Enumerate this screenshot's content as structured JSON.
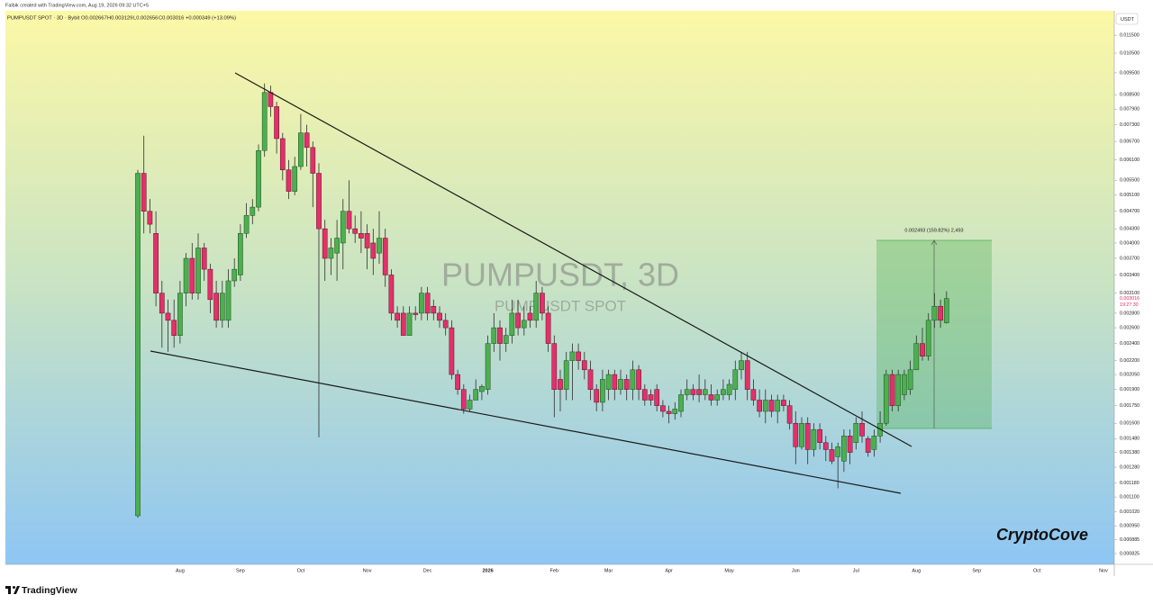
{
  "header": {
    "credit": "Falbik created with TradingView.com, Aug 19, 2026 09:32 UTC+5",
    "symbol": "PUMPUSDT SPOT · 3D · Bybit",
    "open": "O0.002667",
    "high": "H0.003129",
    "low": "L0.002656",
    "close": "C0.003016",
    "change": "+0.000349 (+13.09%)",
    "currency": "USDT"
  },
  "watermark": {
    "title": "PUMPUSDT, 3D",
    "subtitle": "PUMPUSDT SPOT"
  },
  "measure_label": "0.002493 (159.82%) 2,493",
  "countdown": "19:27:30",
  "signature": "CryptoCove",
  "brand": "TradingView",
  "chart_data": {
    "type": "candlestick",
    "log_scale": true,
    "up_color": "#4caf50",
    "down_color": "#e3306a",
    "categories": [
      null,
      null,
      null,
      null,
      null,
      null,
      null,
      "Aug",
      null,
      null,
      null,
      null,
      null,
      null,
      null,
      null,
      null,
      "Sep",
      null,
      null,
      null,
      null,
      null,
      null,
      null,
      null,
      null,
      "Oct",
      null,
      null,
      null,
      null,
      null,
      null,
      null,
      null,
      null,
      null,
      "Nov",
      null,
      null,
      null,
      null,
      null,
      null,
      null,
      null,
      null,
      "Dec",
      null,
      null,
      null,
      null,
      null,
      null,
      null,
      null,
      null,
      "2026",
      null,
      null,
      null,
      null,
      null,
      null,
      null,
      null,
      null,
      null,
      "Feb",
      null,
      null,
      null,
      null,
      null,
      null,
      null,
      null,
      "Mar",
      null,
      null,
      null,
      null,
      null,
      null,
      null,
      null,
      null,
      "Apr",
      null,
      null,
      null,
      null,
      null,
      null,
      null,
      null,
      null,
      "May",
      null,
      null,
      null,
      null,
      null,
      null,
      null,
      null,
      null,
      null,
      "Jun",
      null,
      null,
      null,
      null,
      null,
      null,
      null,
      null,
      null,
      "Jul",
      null,
      null,
      null,
      null,
      null,
      null,
      null,
      null,
      null,
      "Aug",
      null,
      null,
      null,
      null,
      null,
      null,
      null,
      null,
      null,
      "Sep",
      null,
      null,
      null,
      null,
      null,
      null,
      null,
      null,
      null,
      "Oct",
      null,
      null,
      null,
      null,
      null,
      null,
      null,
      null,
      null,
      null,
      "Nov",
      null
    ],
    "open": [
      0.001,
      0.0057,
      0.0047,
      0.0042,
      0.0031,
      0.0028,
      0.0027,
      0.0025,
      0.0031,
      0.0037,
      0.0031,
      0.0039,
      0.0035,
      0.0031,
      0.0027,
      0.0027,
      0.0033,
      0.0034,
      0.0042,
      0.0046,
      0.0048,
      0.0064,
      0.0086,
      0.008,
      0.0068,
      0.0058,
      0.0052,
      0.0059,
      0.007,
      0.0065,
      0.0057,
      0.0043,
      0.0037,
      0.0038,
      0.004,
      0.0047,
      0.0043,
      0.0042,
      0.0042,
      0.004,
      0.0038,
      0.0041,
      0.0034,
      0.0028,
      0.0028,
      0.0025,
      0.0028,
      0.0028,
      0.0031,
      0.0029,
      0.0028,
      0.0027,
      0.0026,
      0.00205,
      0.0019,
      0.00172,
      0.0018,
      0.00188,
      0.0019,
      0.0024,
      0.0026,
      0.0024,
      0.0025,
      0.0028,
      0.0026,
      0.0028,
      0.0027,
      0.0031,
      0.0028,
      0.0024,
      0.002,
      0.0019,
      0.0022,
      0.0023,
      0.0022,
      0.0021,
      0.0019,
      0.00178,
      0.0019,
      0.00205,
      0.0019,
      0.002,
      0.0019,
      0.0021,
      0.0019,
      0.00185,
      0.0019,
      0.00175,
      0.0017,
      0.00168,
      0.0017,
      0.00185,
      0.0019,
      0.0019,
      0.00185,
      0.00185,
      0.0018,
      0.00185,
      0.00185,
      0.0019,
      0.0021,
      0.0022,
      0.0019,
      0.0018,
      0.0017,
      0.0018,
      0.0017,
      0.0018,
      0.00175,
      0.0016,
      0.00142,
      0.0016,
      0.0014,
      0.00155,
      0.00145,
      0.0014,
      0.00135,
      0.00132,
      0.0015,
      0.00145,
      0.0016,
      0.00148,
      0.0014,
      0.0015,
      0.0016,
      0.00205,
      0.00175,
      0.00185,
      0.0019,
      0.0021,
      0.0024,
      0.00225,
      0.0027,
      0.0029,
      0.002667,
      null,
      null,
      null,
      null,
      null,
      null,
      null,
      null,
      null,
      null,
      null,
      null,
      null,
      null,
      null,
      null,
      null,
      null,
      null,
      null,
      null,
      null,
      null,
      null,
      null,
      null,
      null
    ],
    "high": [
      0.0058,
      0.0069,
      0.005,
      0.0047,
      0.0033,
      0.003,
      0.003,
      0.0033,
      0.0038,
      0.004,
      0.0042,
      0.004,
      0.0036,
      0.0033,
      0.0033,
      0.0035,
      0.0037,
      0.0044,
      0.0049,
      0.005,
      0.0066,
      0.009,
      0.0089,
      0.0082,
      0.007,
      0.0061,
      0.0062,
      0.0077,
      0.0073,
      0.0067,
      0.006,
      0.0045,
      0.0041,
      0.0045,
      0.005,
      0.0055,
      0.0046,
      0.0047,
      0.0044,
      0.0043,
      0.0047,
      0.0043,
      0.0035,
      0.0029,
      0.0029,
      0.0029,
      0.0029,
      0.0032,
      0.0032,
      0.003,
      0.0029,
      0.0028,
      0.0027,
      0.0021,
      0.00195,
      0.00185,
      0.002,
      0.00195,
      0.0025,
      0.0028,
      0.0027,
      0.0026,
      0.003,
      0.003,
      0.0029,
      0.0029,
      0.0033,
      0.0032,
      0.0029,
      0.0025,
      0.0021,
      0.0023,
      0.0024,
      0.0024,
      0.0023,
      0.0022,
      0.00195,
      0.0021,
      0.0021,
      0.0021,
      0.0021,
      0.00205,
      0.0022,
      0.00215,
      0.00195,
      0.0019,
      0.00195,
      0.0018,
      0.00175,
      0.00178,
      0.0019,
      0.002,
      0.00195,
      0.00205,
      0.002,
      0.00195,
      0.0019,
      0.002,
      0.002,
      0.0022,
      0.0023,
      0.0023,
      0.002,
      0.0019,
      0.0019,
      0.00185,
      0.00185,
      0.00185,
      0.0018,
      0.0017,
      0.00165,
      0.00165,
      0.0016,
      0.0016,
      0.0015,
      0.00145,
      0.00145,
      0.00155,
      0.00155,
      0.00165,
      0.0017,
      0.0015,
      0.00155,
      0.0017,
      0.0021,
      0.0021,
      0.0021,
      0.0021,
      0.0022,
      0.0025,
      0.0026,
      0.0028,
      0.0031,
      0.003,
      0.003129,
      null,
      null,
      null,
      null,
      null,
      null,
      null,
      null,
      null,
      null,
      null,
      null,
      null,
      null,
      null,
      null,
      null,
      null,
      null,
      null,
      null,
      null,
      null,
      null,
      null,
      null,
      null
    ],
    "low": [
      0.00099,
      0.0042,
      0.0042,
      0.0029,
      0.00235,
      0.0023,
      0.00235,
      0.0024,
      0.0029,
      0.003,
      0.003,
      0.0033,
      0.0028,
      0.0026,
      0.0026,
      0.0026,
      0.0032,
      0.0033,
      0.0041,
      0.0044,
      0.0047,
      0.0062,
      0.0076,
      0.0063,
      0.0055,
      0.005,
      0.0051,
      0.0058,
      0.0059,
      0.0048,
      0.00149,
      0.0033,
      0.0034,
      0.0033,
      0.0035,
      0.0042,
      0.004,
      0.0038,
      0.0035,
      0.0034,
      0.0036,
      0.0032,
      0.0027,
      0.0026,
      0.0025,
      0.0025,
      0.0027,
      0.0027,
      0.0027,
      0.0027,
      0.0026,
      0.0025,
      0.002,
      0.00185,
      0.00168,
      0.0017,
      0.0018,
      0.0018,
      0.00185,
      0.0023,
      0.0022,
      0.0023,
      0.0024,
      0.0025,
      0.0025,
      0.0026,
      0.0026,
      0.0027,
      0.0023,
      0.00165,
      0.0017,
      0.0018,
      0.0018,
      0.0021,
      0.002,
      0.0018,
      0.0017,
      0.0017,
      0.0018,
      0.0018,
      0.00185,
      0.0018,
      0.0018,
      0.0018,
      0.00175,
      0.00175,
      0.0017,
      0.00165,
      0.0016,
      0.00163,
      0.00165,
      0.0018,
      0.0018,
      0.00178,
      0.0018,
      0.00175,
      0.00175,
      0.0018,
      0.0018,
      0.0018,
      0.002,
      0.0018,
      0.00175,
      0.00165,
      0.0016,
      0.00165,
      0.0016,
      0.0017,
      0.00155,
      0.0013,
      0.0014,
      0.0013,
      0.00135,
      0.0014,
      0.00132,
      0.0013,
      0.00115,
      0.00125,
      0.0013,
      0.0014,
      0.00145,
      0.00135,
      0.00135,
      0.00145,
      0.00158,
      0.0017,
      0.0017,
      0.0018,
      0.00185,
      0.0021,
      0.0022,
      0.0022,
      0.0026,
      0.0026,
      0.002656,
      null,
      null,
      null,
      null,
      null,
      null,
      null,
      null,
      null,
      null,
      null,
      null,
      null,
      null,
      null,
      null,
      null,
      null,
      null,
      null,
      null,
      null,
      null,
      null,
      null,
      null,
      null
    ],
    "close": [
      0.0057,
      0.0047,
      0.0044,
      0.0031,
      0.0028,
      0.0027,
      0.0025,
      0.0031,
      0.0037,
      0.0031,
      0.0039,
      0.0035,
      0.003,
      0.0027,
      0.0031,
      0.0033,
      0.0035,
      0.0042,
      0.0046,
      0.0048,
      0.0064,
      0.0086,
      0.008,
      0.0068,
      0.0058,
      0.0052,
      0.0059,
      0.007,
      0.0065,
      0.0057,
      0.0043,
      0.0037,
      0.0039,
      0.0041,
      0.0047,
      0.0043,
      0.0042,
      0.0041,
      0.0039,
      0.0037,
      0.0041,
      0.0034,
      0.0028,
      0.0027,
      0.0025,
      0.0028,
      0.00278,
      0.0031,
      0.0028,
      0.0028,
      0.0027,
      0.0026,
      0.00205,
      0.0019,
      0.00172,
      0.0018,
      0.0019,
      0.00193,
      0.0024,
      0.0026,
      0.0024,
      0.0025,
      0.0028,
      0.0026,
      0.0027,
      0.0027,
      0.0031,
      0.0028,
      0.0024,
      0.0019,
      0.0019,
      0.0022,
      0.0023,
      0.0022,
      0.0021,
      0.0019,
      0.00178,
      0.002,
      0.00205,
      0.0019,
      0.002,
      0.0019,
      0.0021,
      0.0019,
      0.0018,
      0.0018,
      0.00175,
      0.0017,
      0.00168,
      0.00172,
      0.00185,
      0.0019,
      0.00185,
      0.00185,
      0.0019,
      0.0018,
      0.00185,
      0.0019,
      0.00195,
      0.0021,
      0.0022,
      0.0019,
      0.0018,
      0.0017,
      0.0018,
      0.0017,
      0.0018,
      0.00175,
      0.0016,
      0.00142,
      0.0016,
      0.0014,
      0.00155,
      0.00145,
      0.0014,
      0.00132,
      0.00142,
      0.0015,
      0.00138,
      0.0016,
      0.0015,
      0.00138,
      0.0015,
      0.0016,
      0.00205,
      0.00175,
      0.00205,
      0.00205,
      0.0021,
      0.0024,
      0.00225,
      0.0027,
      0.0029,
      0.0027,
      0.003016,
      null,
      null,
      null,
      null,
      null,
      null,
      null,
      null,
      null,
      null,
      null,
      null,
      null,
      null,
      null,
      null,
      null,
      null,
      null,
      null,
      null,
      null,
      null,
      null,
      null,
      null,
      null
    ],
    "ylim": [
      0.000781,
      0.0129
    ],
    "yticks": [
      {
        "value": 0.0115,
        "label": "0.011500"
      },
      {
        "value": 0.0105,
        "label": "0.010500"
      },
      {
        "value": 0.0095,
        "label": "0.009500"
      },
      {
        "value": 0.0085,
        "label": "0.008500"
      },
      {
        "value": 0.0079,
        "label": "0.007900"
      },
      {
        "value": 0.0073,
        "label": "0.007300"
      },
      {
        "value": 0.0067,
        "label": "0.006700"
      },
      {
        "value": 0.0061,
        "label": "0.006100"
      },
      {
        "value": 0.0055,
        "label": "0.005500"
      },
      {
        "value": 0.0051,
        "label": "0.005100"
      },
      {
        "value": 0.0047,
        "label": "0.004700"
      },
      {
        "value": 0.0043,
        "label": "0.004300"
      },
      {
        "value": 0.004,
        "label": "0.004000"
      },
      {
        "value": 0.0037,
        "label": "0.003700"
      },
      {
        "value": 0.0034,
        "label": "0.003400"
      },
      {
        "value": 0.0031,
        "label": "0.003100"
      },
      {
        "value": 0.0028,
        "label": "0.002800"
      },
      {
        "value": 0.0026,
        "label": "0.002600"
      },
      {
        "value": 0.0024,
        "label": "0.002400"
      },
      {
        "value": 0.0022,
        "label": "0.002200"
      },
      {
        "value": 0.00205,
        "label": "0.002050"
      },
      {
        "value": 0.0019,
        "label": "0.001900"
      },
      {
        "value": 0.00175,
        "label": "0.001750"
      },
      {
        "value": 0.0016,
        "label": "0.001600"
      },
      {
        "value": 0.00148,
        "label": "0.001480"
      },
      {
        "value": 0.00138,
        "label": "0.001380"
      },
      {
        "value": 0.00128,
        "label": "0.001280"
      },
      {
        "value": 0.00118,
        "label": "0.001180"
      },
      {
        "value": 0.0011,
        "label": "0.001100"
      },
      {
        "value": 0.00102,
        "label": "0.001020"
      },
      {
        "value": 0.00095,
        "label": "0.000950"
      },
      {
        "value": 0.000885,
        "label": "0.000885"
      },
      {
        "value": 0.000825,
        "label": "0.000825"
      }
    ]
  }
}
